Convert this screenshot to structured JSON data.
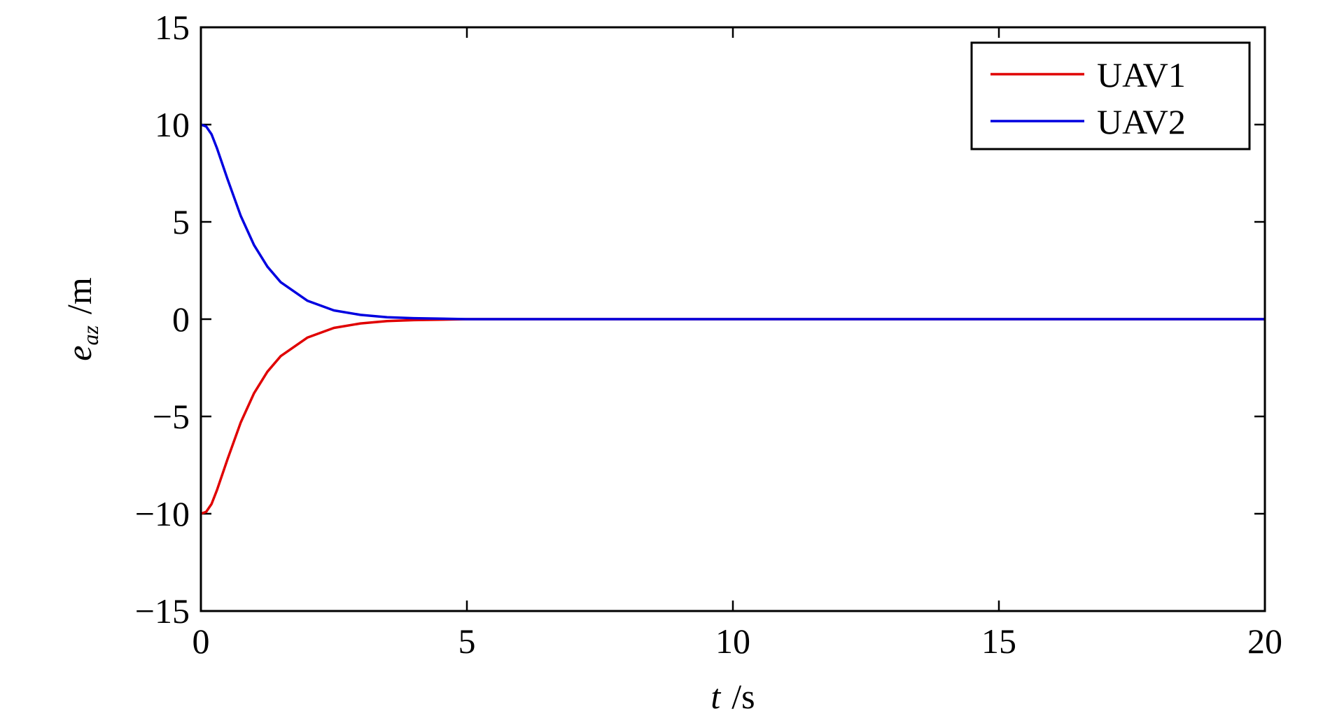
{
  "chart_data": {
    "type": "line",
    "x_label": {
      "symbol": "t",
      "unit": "/s"
    },
    "y_label": {
      "symbol": "e",
      "subscript": "az",
      "unit": "/m"
    },
    "x": [
      0,
      0.1,
      0.2,
      0.3,
      0.5,
      0.75,
      1,
      1.25,
      1.5,
      2,
      2.5,
      3,
      3.5,
      4,
      5,
      10,
      15,
      20
    ],
    "series": [
      {
        "name": "UAV1",
        "color": "#e00000",
        "values": [
          -10,
          -9.9,
          -9.5,
          -8.8,
          -7.2,
          -5.3,
          -3.8,
          -2.7,
          -1.9,
          -0.95,
          -0.45,
          -0.22,
          -0.1,
          -0.05,
          0,
          0,
          0,
          0
        ]
      },
      {
        "name": "UAV2",
        "color": "#0000e0",
        "values": [
          10,
          9.9,
          9.5,
          8.8,
          7.2,
          5.3,
          3.8,
          2.7,
          1.9,
          0.95,
          0.45,
          0.22,
          0.1,
          0.05,
          0,
          0,
          0,
          0
        ]
      }
    ],
    "xlim": [
      0,
      20
    ],
    "xticks": [
      0,
      5,
      10,
      15,
      20
    ],
    "ylim": [
      -15,
      15
    ],
    "yticks": [
      {
        "value": -15,
        "label": "−15"
      },
      {
        "value": -10,
        "label": "−10"
      },
      {
        "value": -5,
        "label": "−5"
      },
      0,
      5,
      10,
      15
    ],
    "grid": false,
    "legend": "upper right"
  }
}
